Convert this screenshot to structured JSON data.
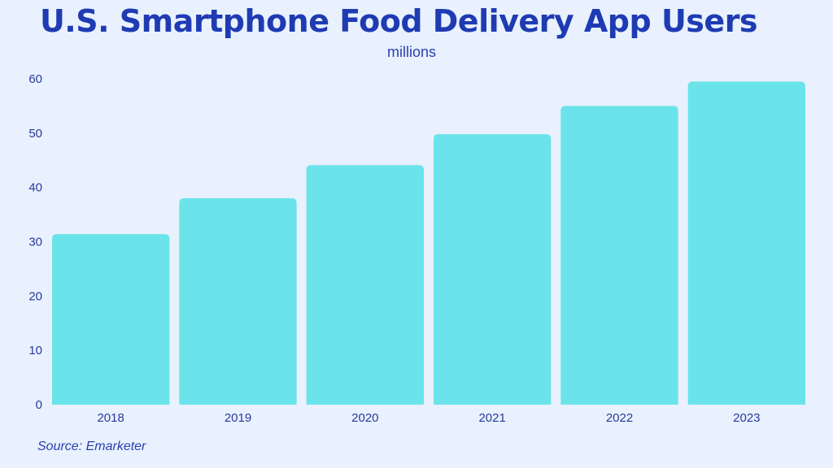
{
  "chart_data": {
    "type": "bar",
    "title": "U.S. Smartphone Food Delivery App Users",
    "subtitle": "millions",
    "xlabel": "",
    "ylabel": "",
    "categories": [
      "2018",
      "2019",
      "2020",
      "2021",
      "2022",
      "2023"
    ],
    "values": [
      31.4,
      38.0,
      44.1,
      49.8,
      55.0,
      59.5
    ],
    "ylim": [
      0,
      60
    ],
    "yticks": [
      0,
      10,
      20,
      30,
      40,
      50,
      60
    ],
    "grid": false,
    "legend": "none",
    "bar_color": "#6ae4ea",
    "source": "Source: Emarketer"
  },
  "colors": {
    "background": "#e8f1fd",
    "title": "#1f3bb3",
    "text": "#2a3a9e",
    "bar": "#6ae4ea"
  }
}
